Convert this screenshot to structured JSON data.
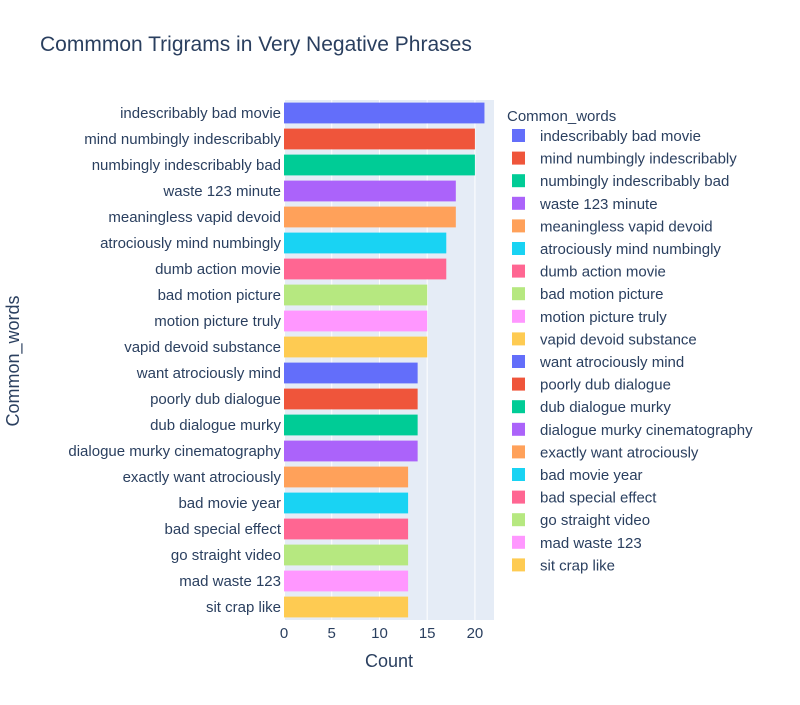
{
  "chart_data": {
    "type": "bar",
    "orientation": "horizontal",
    "title": "Commmon Trigrams in Very Negative Phrases",
    "xlabel": "Count",
    "ylabel": "Common_words",
    "xlim": [
      0,
      22
    ],
    "xticks": [
      0,
      5,
      10,
      15,
      20
    ],
    "grid": true,
    "legend_title": "Common_words",
    "legend_position": "right",
    "plot_background": "#E5ECF6",
    "categories": [
      "indescribably bad movie",
      "mind numbingly indescribably",
      "numbingly indescribably bad",
      "waste 123 minute",
      "meaningless vapid devoid",
      "atrociously mind numbingly",
      "dumb action movie",
      "bad motion picture",
      "motion picture truly",
      "vapid devoid substance",
      "want atrociously mind",
      "poorly dub dialogue",
      "dub dialogue murky",
      "dialogue murky cinematography",
      "exactly want atrociously",
      "bad movie year",
      "bad special effect",
      "go straight video",
      "mad waste 123",
      "sit crap like"
    ],
    "values": [
      21,
      20,
      20,
      18,
      18,
      17,
      17,
      15,
      15,
      15,
      14,
      14,
      14,
      14,
      13,
      13,
      13,
      13,
      13,
      13
    ],
    "colors": [
      "#636EFA",
      "#EF553B",
      "#00CC96",
      "#AB63FA",
      "#FFA15A",
      "#19D3F3",
      "#FF6692",
      "#B6E880",
      "#FF97FF",
      "#FECB52",
      "#636EFA",
      "#EF553B",
      "#00CC96",
      "#AB63FA",
      "#FFA15A",
      "#19D3F3",
      "#FF6692",
      "#B6E880",
      "#FF97FF",
      "#FECB52"
    ]
  }
}
